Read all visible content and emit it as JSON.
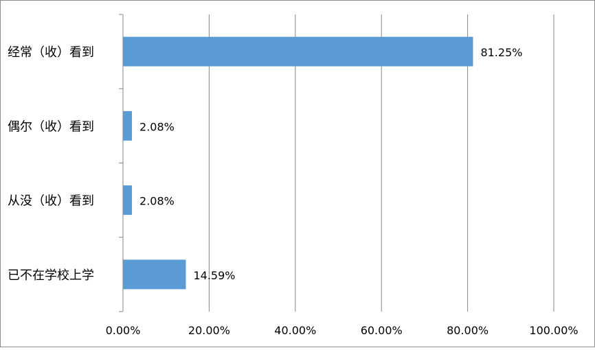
{
  "chart_data": {
    "type": "bar",
    "orientation": "horizontal",
    "categories": [
      "经常（收）看到",
      "偶尔（收）看到",
      "从没（收）看到",
      "已不在学校上学"
    ],
    "values": [
      81.25,
      2.08,
      2.08,
      14.59
    ],
    "data_labels": [
      "81.25%",
      "2.08%",
      "2.08%",
      "14.59%"
    ],
    "x_ticks": [
      0,
      20,
      40,
      60,
      80,
      100
    ],
    "x_tick_labels": [
      "0.00%",
      "20.00%",
      "40.00%",
      "60.00%",
      "80.00%",
      "100.00%"
    ],
    "xlim": [
      0,
      100
    ],
    "title": "",
    "xlabel": "",
    "ylabel": "",
    "grid": "vertical",
    "legend": "none",
    "bar_color": "#5b9bd5",
    "grid_color": "#868686"
  }
}
